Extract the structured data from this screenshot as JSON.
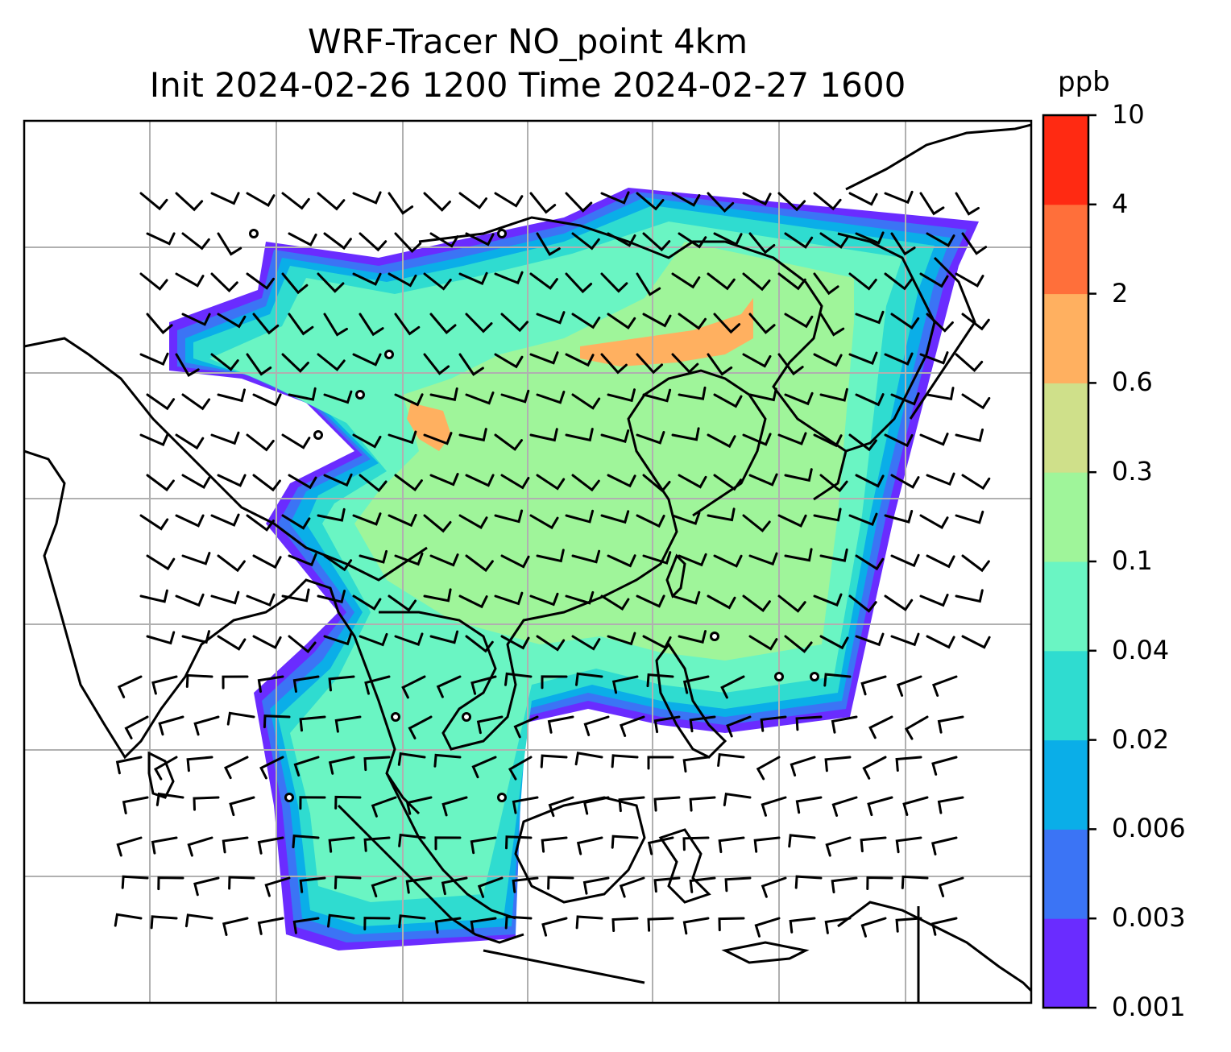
{
  "title_line1": "WRF-Tracer NO_point 4km",
  "title_line2": "Init 2024-02-26 1200 Time 2024-02-27 1600",
  "colorbar": {
    "unit": "ppb",
    "ticks": [
      "0.001",
      "0.003",
      "0.006",
      "0.02",
      "0.04",
      "0.1",
      "0.3",
      "0.6",
      "2",
      "4",
      "10"
    ],
    "colors": [
      "#6a2cff",
      "#3b74f5",
      "#0aaee8",
      "#2fdcd0",
      "#6af5c3",
      "#9ff59a",
      "#cfe08a",
      "#ffb060",
      "#ff6f3a",
      "#ff2a12"
    ]
  },
  "map": {
    "gridlines": true,
    "coastline_color": "#000000",
    "grid_color": "#b0b0b0"
  }
}
